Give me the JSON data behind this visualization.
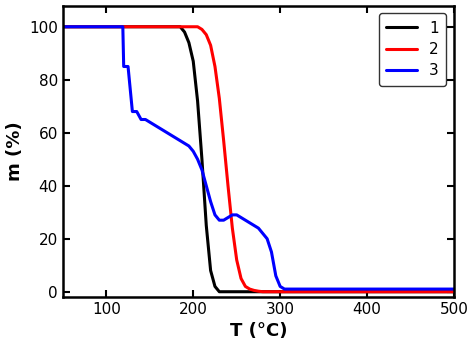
{
  "title": "",
  "xlabel": "T (°C)",
  "ylabel": "m (%)",
  "xlim": [
    50,
    500
  ],
  "ylim": [
    -2,
    108
  ],
  "xticks": [
    100,
    200,
    300,
    400,
    500
  ],
  "yticks": [
    0,
    20,
    40,
    60,
    80,
    100
  ],
  "series": [
    {
      "label": "1",
      "color": "#000000",
      "linewidth": 2.2,
      "x": [
        50,
        185,
        190,
        195,
        200,
        205,
        210,
        215,
        220,
        225,
        230,
        500
      ],
      "y": [
        100,
        100,
        98,
        94,
        87,
        72,
        50,
        25,
        8,
        2,
        0,
        0
      ]
    },
    {
      "label": "2",
      "color": "#ff0000",
      "linewidth": 2.2,
      "x": [
        50,
        195,
        200,
        205,
        210,
        215,
        220,
        225,
        230,
        235,
        240,
        245,
        250,
        255,
        260,
        265,
        270,
        275,
        280,
        285,
        500
      ],
      "y": [
        100,
        100,
        100,
        100,
        99,
        97,
        93,
        85,
        73,
        57,
        40,
        24,
        12,
        5,
        2,
        1,
        0.5,
        0.2,
        0,
        0,
        0
      ]
    },
    {
      "label": "3",
      "color": "#0000ff",
      "linewidth": 2.2,
      "x": [
        50,
        119,
        120,
        121,
        125,
        130,
        135,
        140,
        145,
        150,
        155,
        160,
        165,
        170,
        175,
        180,
        185,
        190,
        195,
        200,
        205,
        210,
        215,
        220,
        225,
        230,
        235,
        240,
        245,
        250,
        255,
        260,
        265,
        270,
        275,
        280,
        285,
        290,
        295,
        300,
        305,
        310,
        315,
        320,
        325,
        330,
        335,
        340,
        500
      ],
      "y": [
        100,
        100,
        85,
        85,
        85,
        68,
        68,
        65,
        65,
        64,
        63,
        62,
        61,
        60,
        59,
        58,
        57,
        56,
        55,
        53,
        50,
        46,
        40,
        34,
        29,
        27,
        27,
        28,
        29,
        29,
        28,
        27,
        26,
        25,
        24,
        22,
        20,
        15,
        6,
        2,
        1,
        1,
        1,
        1,
        1,
        1,
        1,
        1,
        1
      ]
    }
  ],
  "legend_loc": "upper right",
  "background_color": "#ffffff",
  "axes_linewidth": 1.8
}
